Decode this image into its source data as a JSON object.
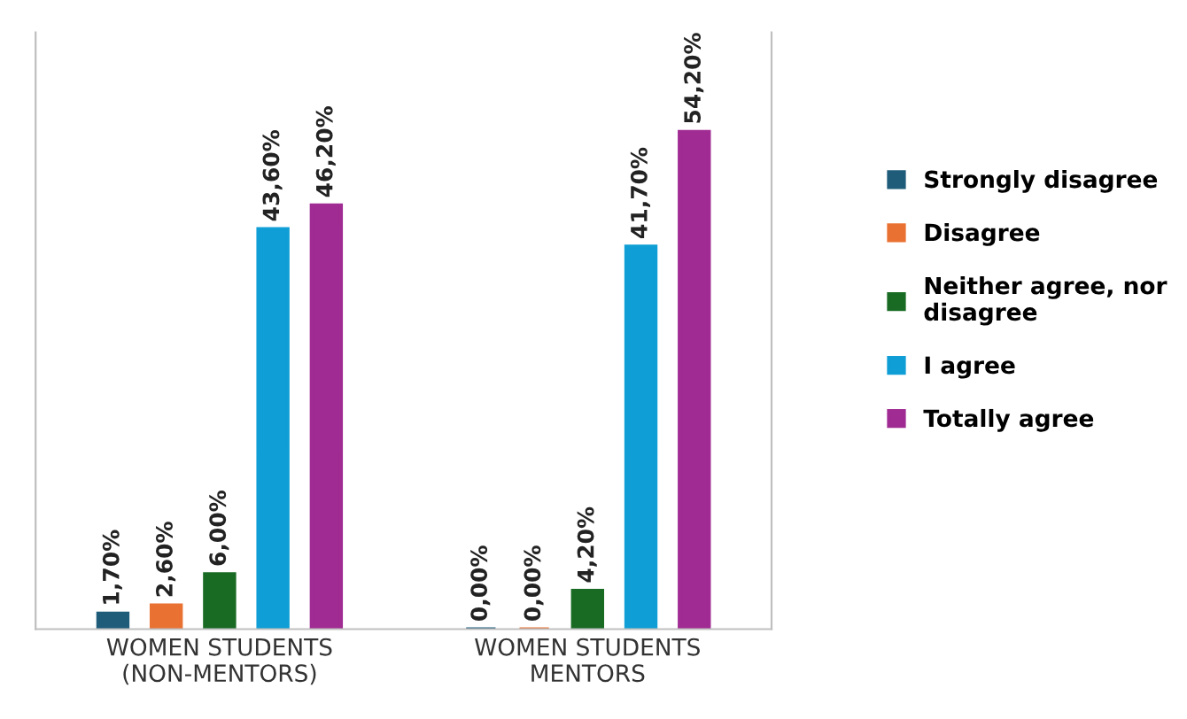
{
  "chart_data": {
    "type": "bar",
    "categories": [
      "WOMEN STUDENTS (NON-MENTORS)",
      "WOMEN STUDENTS MENTORS"
    ],
    "series": [
      {
        "name": "Strongly disagree",
        "color": "#1f5c7a",
        "values": [
          1.7,
          0.0
        ],
        "value_labels": [
          "1,70%",
          "0,00%"
        ]
      },
      {
        "name": "Disagree",
        "color": "#e97132",
        "values": [
          2.6,
          0.0
        ],
        "value_labels": [
          "2,60%",
          "0,00%"
        ]
      },
      {
        "name": "Neither agree, nor disagree",
        "color": "#196b24",
        "values": [
          6.0,
          4.2
        ],
        "value_labels": [
          "6,00%",
          "4,20%"
        ]
      },
      {
        "name": "I agree",
        "color": "#0f9ed5",
        "values": [
          43.6,
          41.7
        ],
        "value_labels": [
          "43,60%",
          "41,70%"
        ]
      },
      {
        "name": "Totally agree",
        "color": "#a02b93",
        "values": [
          46.2,
          54.2
        ],
        "value_labels": [
          "46,20%",
          "54,20%"
        ]
      }
    ],
    "legend": "right",
    "grid": false
  }
}
